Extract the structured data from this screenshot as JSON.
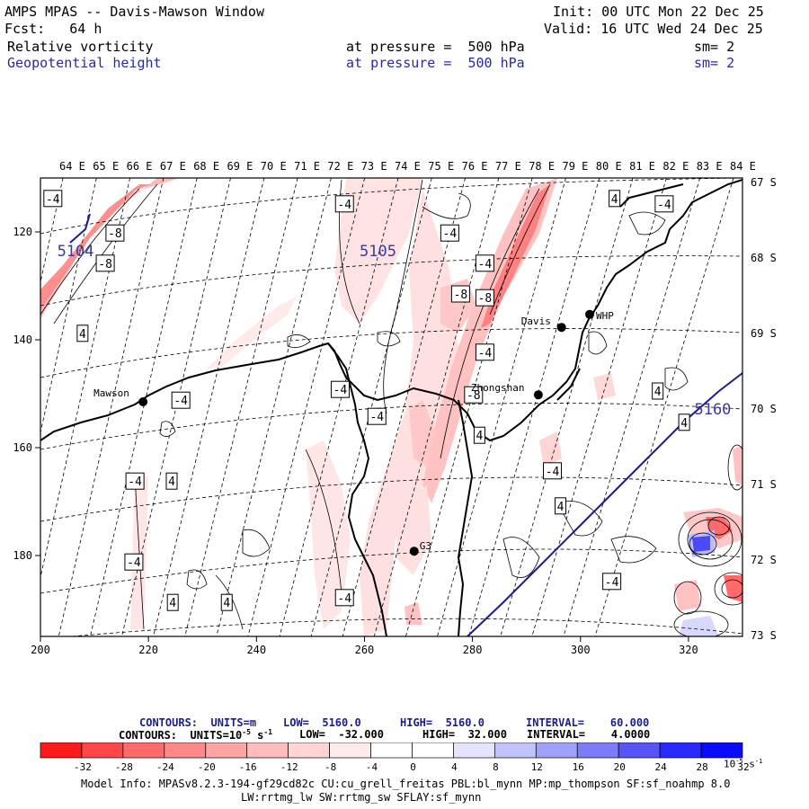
{
  "header": {
    "title": "AMPS MPAS -- Davis-Mawson Window",
    "init": "Init: 00 UTC Mon 22 Dec 25",
    "forecast": "Fcst:   64 h",
    "valid": "Valid: 16 UTC Wed 24 Dec 25",
    "field1": {
      "name": "Relative vorticity",
      "level": "at pressure =  500 hPa",
      "sm": "sm= 2"
    },
    "field2": {
      "name": "Geopotential height",
      "level": "at pressure =  500 hPa",
      "sm": "sm= 2"
    }
  },
  "map": {
    "lon_labels": [
      "64 E",
      "65 E",
      "66 E",
      "67 E",
      "68 E",
      "69 E",
      "70 E",
      "71 E",
      "72 E",
      "73 E",
      "74 E",
      "75 E",
      "76 E",
      "77 E",
      "78 E",
      "79 E",
      "80 E",
      "81 E",
      "82 E",
      "83 E",
      "84 E"
    ],
    "lat_labels": [
      "67 S",
      "68 S",
      "69 S",
      "70 S",
      "71 S",
      "72 S",
      "73 S"
    ],
    "x_ticks": [
      "200",
      "220",
      "240",
      "260",
      "280",
      "300",
      "320"
    ],
    "y_ticks": [
      "120",
      "140",
      "160",
      "180"
    ],
    "stations": [
      {
        "name": "Mawson",
        "x": 219,
        "y": 151.5
      },
      {
        "name": "Davis",
        "x": 296.5,
        "y": 137.7
      },
      {
        "name": "WHP",
        "x": 301.7,
        "y": 135.3
      },
      {
        "name": "Zhongshan",
        "x": 292.2,
        "y": 150.2
      },
      {
        "name": "G3",
        "x": 269.2,
        "y": 179.2
      }
    ],
    "height_labels": [
      {
        "text": "5104",
        "x": 206.5,
        "y": 123.5
      },
      {
        "text": "5105",
        "x": 262.5,
        "y": 123.5
      },
      {
        "text": "5160",
        "x": 324.5,
        "y": 152.8
      }
    ],
    "vort_labels": [
      {
        "text": "-4",
        "x": 202.3,
        "y": 113.8
      },
      {
        "text": "-8",
        "x": 213.8,
        "y": 120.2
      },
      {
        "text": "-8",
        "x": 212,
        "y": 125.8
      },
      {
        "text": "4",
        "x": 207.8,
        "y": 138.8
      },
      {
        "text": "-4",
        "x": 226,
        "y": 151.2
      },
      {
        "text": "-4",
        "x": 217.5,
        "y": 166.2
      },
      {
        "text": "4",
        "x": 224.3,
        "y": 166.2
      },
      {
        "text": "-4",
        "x": 217.3,
        "y": 181.2
      },
      {
        "text": "4",
        "x": 224.5,
        "y": 188.7
      },
      {
        "text": "4",
        "x": 234.5,
        "y": 188.7
      },
      {
        "text": "-4",
        "x": 256.3,
        "y": 114.8
      },
      {
        "text": "-4",
        "x": 255.5,
        "y": 149.2
      },
      {
        "text": "-4",
        "x": 262.3,
        "y": 154.2
      },
      {
        "text": "-4",
        "x": 256.3,
        "y": 187.8
      },
      {
        "text": "-4",
        "x": 275.8,
        "y": 120.2
      },
      {
        "text": "-4",
        "x": 282.3,
        "y": 125.8
      },
      {
        "text": "-8",
        "x": 277.8,
        "y": 131.5
      },
      {
        "text": "-8",
        "x": 282.3,
        "y": 132.2
      },
      {
        "text": "-4",
        "x": 282.3,
        "y": 142.3
      },
      {
        "text": "-8",
        "x": 280.2,
        "y": 150.2
      },
      {
        "text": "4",
        "x": 281.3,
        "y": 157.7
      },
      {
        "text": "-4",
        "x": 294.8,
        "y": 164.3
      },
      {
        "text": "4",
        "x": 296.3,
        "y": 170.8
      },
      {
        "text": "-4",
        "x": 305.8,
        "y": 184.8
      },
      {
        "text": "4",
        "x": 306.3,
        "y": 113.8
      },
      {
        "text": "-4",
        "x": 315.5,
        "y": 114.8
      },
      {
        "text": "4",
        "x": 314.3,
        "y": 149.5
      },
      {
        "text": "4",
        "x": 319.2,
        "y": 155.3
      }
    ]
  },
  "legend": {
    "line1": {
      "label": "CONTOURS:  UNITS=m",
      "low": "LOW=  5160.0",
      "high": "HIGH=  5160.0",
      "interval": "INTERVAL=    60.000"
    },
    "line2": {
      "label": "CONTOURS:  UNITS=10",
      "exp": "-5",
      "unit": " s",
      "exp2": "-1",
      "low": "LOW=  -32.000",
      "high": "HIGH=  32.000",
      "interval": "INTERVAL=    4.0000"
    },
    "colors": [
      "#ff1a1a",
      "#ff4747",
      "#ff6b6b",
      "#ff8888",
      "#ffa3a3",
      "#ffbcbc",
      "#ffd4d4",
      "#ffeaea",
      "#ffffff",
      "#ffffff",
      "#e3e3fe",
      "#c1c1fc",
      "#a0a0fb",
      "#7c7cf9",
      "#5555f8",
      "#2a2aff",
      "#0a0aff"
    ],
    "ticks": [
      "-32",
      "-28",
      "-24",
      "-20",
      "-16",
      "-12",
      "-8",
      "-4",
      "0",
      "4",
      "8",
      "12",
      "16",
      "20",
      "24",
      "28",
      "32"
    ],
    "units": "10",
    "units_exp": "-5",
    "units_s": " s",
    "units_exp2": "-1"
  },
  "footer": {
    "line1": "Model Info: MPASv8.2.3-194-gf29cd82c CU:cu_grell_freitas PBL:bl_mynn MP:mp_thompson SF:sf_noahmp 8.0",
    "line2": "LW:rrtmg_lw SW:rrtmg_sw SFLAY:sf_mynn"
  }
}
